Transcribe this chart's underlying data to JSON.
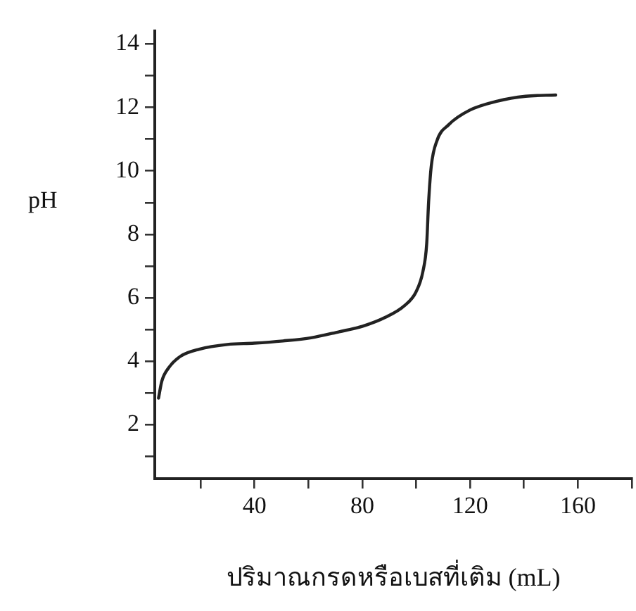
{
  "chart_data": {
    "type": "line",
    "xlabel": "ปริมาณกรดหรือเบสที่เติม (mL)",
    "ylabel": "pH",
    "x": [
      4.4,
      5.6,
      8.2,
      12.6,
      19.5,
      29.9,
      39.9,
      50.6,
      61.0,
      71.4,
      80.0,
      88.7,
      95.6,
      99.9,
      102.5,
      103.9,
      104.6,
      105.6,
      107.7,
      112.0,
      119.8,
      130.2,
      140.6,
      151.8
    ],
    "series": [
      {
        "color": "#222222",
        "values": [
          2.84,
          3.37,
          3.8,
          4.16,
          4.38,
          4.53,
          4.57,
          4.64,
          4.74,
          4.93,
          5.1,
          5.39,
          5.75,
          6.18,
          6.83,
          7.7,
          9.0,
          10.15,
          10.95,
          11.45,
          11.91,
          12.2,
          12.35,
          12.39
        ]
      }
    ],
    "xlim": [
      3,
      180
    ],
    "xticks": [
      {
        "value": 20,
        "label": null
      },
      40,
      {
        "value": 60,
        "label": null
      },
      80,
      {
        "value": 100,
        "label": null
      },
      120,
      {
        "value": 140,
        "label": null
      },
      160,
      {
        "value": 180,
        "label": null
      }
    ],
    "ylim": [
      0.3,
      14.4
    ],
    "yticks": [
      {
        "value": 1,
        "label": null
      },
      2,
      {
        "value": 3,
        "label": null
      },
      4,
      {
        "value": 5,
        "label": null
      },
      6,
      {
        "value": 7,
        "label": null
      },
      8,
      {
        "value": 9,
        "label": null
      },
      10,
      {
        "value": 11,
        "label": null
      },
      12,
      {
        "value": 13,
        "label": null
      },
      14
    ],
    "grid": false,
    "legend": false,
    "marker": "none",
    "line_style": "solid"
  }
}
